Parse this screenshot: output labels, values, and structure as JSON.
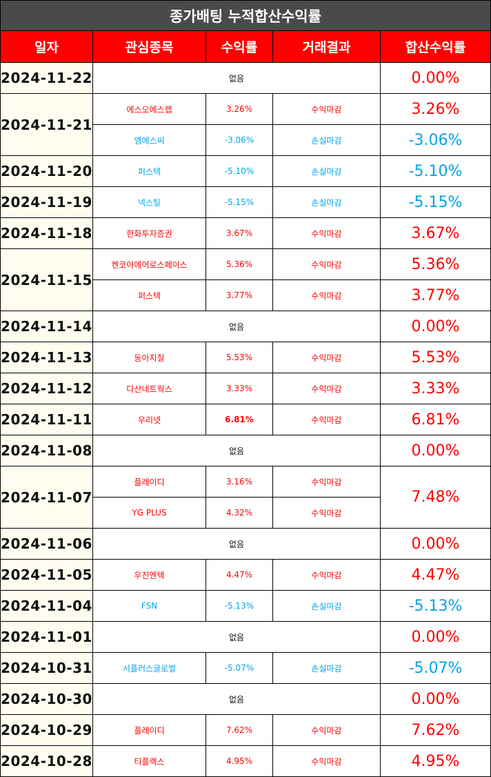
{
  "title": "종가배팅 누적합산수익률",
  "headers": [
    "일자",
    "관심종목",
    "수익률",
    "거래결과",
    "합산수익률"
  ],
  "colors": {
    "profit": "#ff0000",
    "loss": "#00a3e8",
    "header_bg": "#ff0000",
    "title_bg": "#4a4a4a",
    "date_bg": "#fffdf0"
  },
  "days": [
    {
      "date": "2024-11-22",
      "total": "0.00%",
      "total_type": "zero",
      "trades": []
    },
    {
      "date": "2024-11-21",
      "total_type": "split",
      "trades": [
        {
          "name": "에스오에스랩",
          "rate": "3.26%",
          "result": "수익마감",
          "type": "profit",
          "total": "3.26%"
        },
        {
          "name": "엠에스씨",
          "rate": "-3.06%",
          "result": "손실마감",
          "type": "loss",
          "total": "-3.06%"
        }
      ]
    },
    {
      "date": "2024-11-20",
      "total_type": "split",
      "trades": [
        {
          "name": "퍼스텍",
          "rate": "-5.10%",
          "result": "손실마감",
          "type": "loss",
          "total": "-5.10%"
        }
      ]
    },
    {
      "date": "2024-11-19",
      "total_type": "split",
      "trades": [
        {
          "name": "넥스틸",
          "rate": "-5.15%",
          "result": "손실마감",
          "type": "loss",
          "total": "-5.15%"
        }
      ]
    },
    {
      "date": "2024-11-18",
      "total_type": "split",
      "trades": [
        {
          "name": "한화투자증권",
          "rate": "3.67%",
          "result": "수익마감",
          "type": "profit",
          "total": "3.67%"
        }
      ]
    },
    {
      "date": "2024-11-15",
      "total_type": "split",
      "trades": [
        {
          "name": "켄코아에어로스페이스",
          "rate": "5.36%",
          "result": "수익마감",
          "type": "profit",
          "total": "5.36%"
        },
        {
          "name": "퍼스텍",
          "rate": "3.77%",
          "result": "수익마감",
          "type": "profit",
          "total": "3.77%"
        }
      ]
    },
    {
      "date": "2024-11-14",
      "total": "0.00%",
      "total_type": "zero",
      "trades": []
    },
    {
      "date": "2024-11-13",
      "total_type": "split",
      "trades": [
        {
          "name": "동아지질",
          "rate": "5.53%",
          "result": "수익마감",
          "type": "profit",
          "total": "5.53%"
        }
      ]
    },
    {
      "date": "2024-11-12",
      "total_type": "split",
      "trades": [
        {
          "name": "다산네트웍스",
          "rate": "3.33%",
          "result": "수익마감",
          "type": "profit",
          "total": "3.33%"
        }
      ]
    },
    {
      "date": "2024-11-11",
      "total_type": "split",
      "trades": [
        {
          "name": "우리넷",
          "rate": "6.81%",
          "result": "수익마감",
          "type": "profit",
          "total": "6.81%",
          "bold_rate": true
        }
      ]
    },
    {
      "date": "2024-11-08",
      "total": "0.00%",
      "total_type": "zero",
      "trades": []
    },
    {
      "date": "2024-11-07",
      "total": "7.48%",
      "total_type": "merged",
      "trades": [
        {
          "name": "플레이디",
          "rate": "3.16%",
          "result": "수익마감",
          "type": "profit"
        },
        {
          "name": "YG PLUS",
          "rate": "4.32%",
          "result": "수익마감",
          "type": "profit"
        }
      ]
    },
    {
      "date": "2024-11-06",
      "total": "0.00%",
      "total_type": "zero",
      "trades": []
    },
    {
      "date": "2024-11-05",
      "total_type": "split",
      "trades": [
        {
          "name": "우진엔텍",
          "rate": "4.47%",
          "result": "수익마감",
          "type": "profit",
          "total": "4.47%"
        }
      ]
    },
    {
      "date": "2024-11-04",
      "total_type": "split",
      "trades": [
        {
          "name": "FSN",
          "rate": "-5.13%",
          "result": "손실마감",
          "type": "loss",
          "total": "-5.13%"
        }
      ]
    },
    {
      "date": "2024-11-01",
      "total": "0.00%",
      "total_type": "zero",
      "trades": []
    },
    {
      "date": "2024-10-31",
      "total_type": "split",
      "trades": [
        {
          "name": "서플러스글로벌",
          "rate": "-5.07%",
          "result": "손실마감",
          "type": "loss",
          "total": "-5.07%"
        }
      ]
    },
    {
      "date": "2024-10-30",
      "total": "0.00%",
      "total_type": "zero",
      "trades": []
    },
    {
      "date": "2024-10-29",
      "total_type": "split",
      "trades": [
        {
          "name": "플레이디",
          "rate": "7.62%",
          "result": "수익마감",
          "type": "profit",
          "total": "7.62%"
        }
      ]
    },
    {
      "date": "2024-10-28",
      "total_type": "split",
      "trades": [
        {
          "name": "티플랙스",
          "rate": "4.95%",
          "result": "수익마감",
          "type": "profit",
          "total": "4.95%"
        }
      ]
    }
  ],
  "none_label": "없음"
}
